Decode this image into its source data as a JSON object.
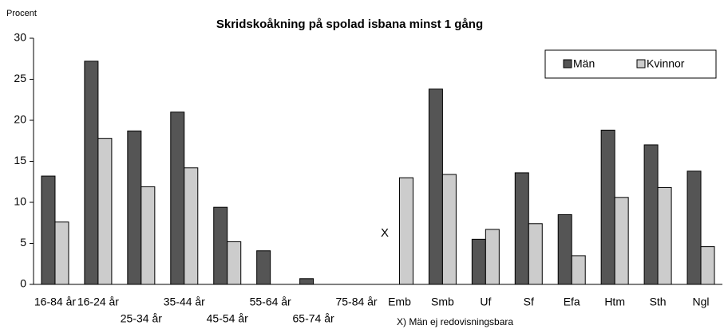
{
  "chart_data": {
    "type": "bar",
    "title": "Skridskoåkning på spolad isbana minst 1 gång",
    "ylabel": "Procent",
    "categories": [
      "16-84 år",
      "16-24 år",
      "25-34 år",
      "35-44 år",
      "45-54 år",
      "55-64 år",
      "65-74 år",
      "75-84 år",
      "Emb",
      "Smb",
      "Uf",
      "Sf",
      "Efa",
      "Htm",
      "Sth",
      "Ngl"
    ],
    "series": [
      {
        "name": "Män",
        "color": "#555555",
        "values": [
          13.2,
          27.2,
          18.7,
          21.0,
          9.4,
          4.1,
          0.7,
          null,
          null,
          23.8,
          5.5,
          13.6,
          8.5,
          18.8,
          17.0,
          13.8
        ]
      },
      {
        "name": "Kvinnor",
        "color": "#cccccc",
        "values": [
          7.6,
          17.8,
          11.9,
          14.2,
          5.2,
          null,
          null,
          null,
          13.0,
          13.4,
          6.7,
          7.4,
          3.5,
          10.6,
          11.8,
          4.6
        ]
      }
    ],
    "annotation": "X",
    "footnote": "X) Män ej redovisningsbara",
    "ylim": [
      0,
      30
    ],
    "yticks": [
      0,
      5,
      10,
      15,
      20,
      25,
      30
    ],
    "legend": "top-right"
  }
}
